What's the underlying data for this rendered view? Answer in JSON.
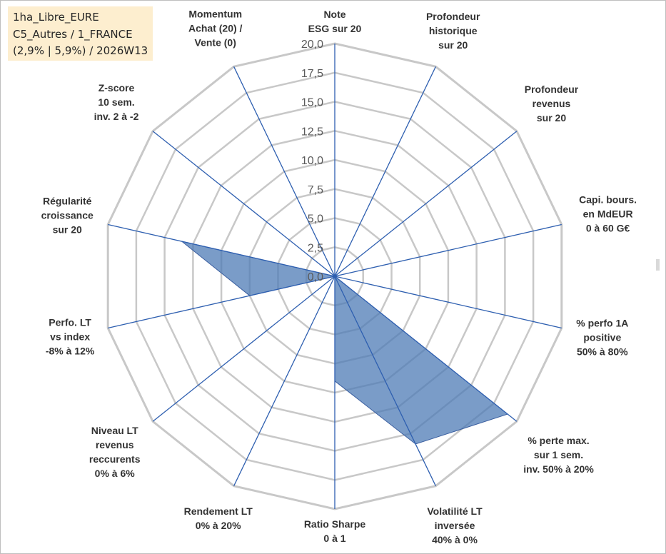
{
  "info_box": {
    "line1": "1ha_Libre_EURE",
    "line2": "C5_Autres / 1_FRANCE",
    "line3": "(2,9% | 5,9%) / 2026W13"
  },
  "colors": {
    "fill": "#4e7bb5",
    "fill_opacity": 0.75,
    "outline": "#3b5fa0",
    "spoke": "#2e5fb0",
    "grid": "#c8c8c8",
    "info_bg": "#fdeecf"
  },
  "chart_data": {
    "type": "radar",
    "grid": true,
    "r_range": [
      0,
      20
    ],
    "r_step": 2.5,
    "tick_labels": [
      "0,0",
      "2,5",
      "5,0",
      "7,5",
      "10,0",
      "12,5",
      "15,0",
      "17,5",
      "20,0"
    ],
    "axes": [
      [
        "Note",
        "ESG sur 20"
      ],
      [
        "Profondeur",
        "historique",
        "sur 20"
      ],
      [
        "Profondeur",
        "revenus",
        "sur 20"
      ],
      [
        "Capi. bours.",
        "en MdEUR",
        "0 à 60 G€"
      ],
      [
        "% perfo 1A",
        "positive",
        "50% à 80%"
      ],
      [
        "% perte max.",
        "sur 1 sem.",
        "inv. 50% à 20%"
      ],
      [
        "Volatilité LT",
        "inversée",
        "40% à 0%"
      ],
      [
        "Ratio Sharpe",
        "0 à 1"
      ],
      [
        "Rendement LT",
        "0% à 20%"
      ],
      [
        "Niveau LT",
        "revenus",
        "reccurents",
        "0% à 6%"
      ],
      [
        "Perfo. LT",
        "vs index",
        "-8% à 12%"
      ],
      [
        "Régularité",
        "croissance",
        "sur 20"
      ],
      [
        "Z-score",
        "10 sem.",
        "inv. 2 à -2"
      ],
      [
        "Momentum",
        "Achat (20) /",
        "Vente (0)"
      ]
    ],
    "series": [
      {
        "values": [
          4.2,
          0,
          0,
          0,
          0,
          19.0,
          16.0,
          9.0,
          0,
          0,
          7.5,
          13.5,
          0,
          0
        ]
      }
    ]
  }
}
